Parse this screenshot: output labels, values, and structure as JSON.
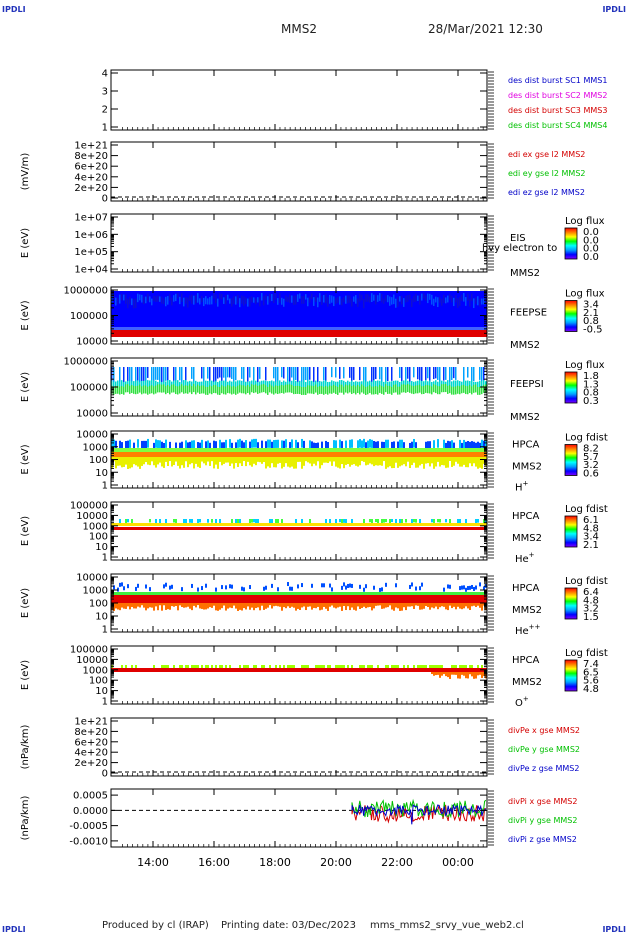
{
  "header": {
    "corner_tl": "IPDLI",
    "corner_tr": "IPDLI",
    "corner_bl": "IPDLI",
    "corner_br": "IPDLI",
    "spacecraft": "MMS2",
    "datetime": "28/Mar/2021 12:30"
  },
  "footer": {
    "produced": "Produced by cl (IRAP)",
    "printing": "Printing date: 03/Dec/2023",
    "filename": "mms_mms2_srvy_vue_web2.cl"
  },
  "colors": {
    "red": "#d40000",
    "green": "#00c000",
    "blue": "#0000c8",
    "magenta": "#e000e0",
    "colorbar": [
      "#7f00ff",
      "#0000ff",
      "#00a0ff",
      "#00ffff",
      "#00ff00",
      "#ffff00",
      "#ff8000",
      "#ff0000"
    ]
  },
  "chart_data": [
    {
      "type": "line",
      "panel": "burst",
      "y_ticks": [
        "1",
        "2",
        "3",
        "4"
      ],
      "legend": [
        {
          "text": "des dist burst SC1 MMS1",
          "color": "#0000c8"
        },
        {
          "text": "des dist burst SC2 MMS2",
          "color": "#e000e0"
        },
        {
          "text": "des dist burst SC3 MMS3",
          "color": "#d40000"
        },
        {
          "text": "des dist burst SC4 MMS4",
          "color": "#00c000"
        }
      ]
    },
    {
      "type": "line",
      "panel": "edi",
      "ylabel": "(mV/m)",
      "y_ticks": [
        "0",
        "2e+20",
        "4e+20",
        "6e+20",
        "8e+20",
        "1e+21"
      ],
      "legend": [
        {
          "text": "edi ex gse l2 MMS2",
          "color": "#d40000"
        },
        {
          "text": "edi ey gse l2 MMS2",
          "color": "#00c000"
        },
        {
          "text": "edi ez gse l2 MMS2",
          "color": "#0000c8"
        }
      ]
    },
    {
      "type": "heatmap",
      "panel": "eis",
      "ylabel": "E (eV)",
      "yscale": "log",
      "y_ticks": [
        "1e+04",
        "1e+05",
        "1e+06",
        "1e+07"
      ],
      "labels": [
        "EIS",
        "MMS2"
      ],
      "overlay_text": "l:vy electron to",
      "colorbar": {
        "title": "Log flux",
        "ticks": [
          "0.0",
          "0.0",
          "0.0",
          "0.0"
        ]
      }
    },
    {
      "type": "heatmap",
      "panel": "feepse",
      "ylabel": "E (eV)",
      "yscale": "log",
      "y_ticks": [
        "10000",
        "100000",
        "1000000"
      ],
      "labels": [
        "FEEPSE",
        "MMS2"
      ],
      "colorbar": {
        "title": "Log flux",
        "ticks": [
          "3.4",
          "2.1",
          "0.8",
          "-0.5"
        ]
      }
    },
    {
      "type": "heatmap",
      "panel": "feepsi",
      "ylabel": "E (eV)",
      "yscale": "log",
      "y_ticks": [
        "10000",
        "100000",
        "1000000"
      ],
      "labels": [
        "FEEPSI",
        "MMS2"
      ],
      "colorbar": {
        "title": "Log flux",
        "ticks": [
          "1.8",
          "1.3",
          "0.8",
          "0.3"
        ]
      }
    },
    {
      "type": "heatmap",
      "panel": "hpca_h",
      "ylabel": "E (eV)",
      "yscale": "log",
      "y_ticks": [
        "1",
        "10",
        "100",
        "1000",
        "10000"
      ],
      "labels": [
        "HPCA",
        "MMS2"
      ],
      "species": "H",
      "species_sup": "+",
      "colorbar": {
        "title": "Log fdist",
        "ticks": [
          "8.2",
          "5.7",
          "3.2",
          "0.6"
        ]
      }
    },
    {
      "type": "heatmap",
      "panel": "hpca_he",
      "ylabel": "E (eV)",
      "yscale": "log",
      "y_ticks": [
        "1",
        "10",
        "100",
        "1000",
        "10000",
        "100000"
      ],
      "labels": [
        "HPCA",
        "MMS2"
      ],
      "species": "He",
      "species_sup": "+",
      "colorbar": {
        "title": "Log fdist",
        "ticks": [
          "6.1",
          "4.8",
          "3.4",
          "2.1"
        ]
      }
    },
    {
      "type": "heatmap",
      "panel": "hpca_hepp",
      "ylabel": "E (eV)",
      "yscale": "log",
      "y_ticks": [
        "1",
        "10",
        "100",
        "1000",
        "10000"
      ],
      "labels": [
        "HPCA",
        "MMS2"
      ],
      "species": "He",
      "species_sup": "++",
      "colorbar": {
        "title": "Log fdist",
        "ticks": [
          "6.4",
          "4.8",
          "3.2",
          "1.5"
        ]
      }
    },
    {
      "type": "heatmap",
      "panel": "hpca_o",
      "ylabel": "E (eV)",
      "yscale": "log",
      "y_ticks": [
        "1",
        "10",
        "100",
        "1000",
        "10000",
        "100000"
      ],
      "labels": [
        "HPCA",
        "MMS2"
      ],
      "species": "O",
      "species_sup": "+",
      "colorbar": {
        "title": "Log fdist",
        "ticks": [
          "7.4",
          "6.5",
          "5.6",
          "4.8"
        ]
      }
    },
    {
      "type": "line",
      "panel": "divpe",
      "ylabel": "(nPa/km)",
      "y_ticks": [
        "0",
        "2e+20",
        "4e+20",
        "6e+20",
        "8e+20",
        "1e+21"
      ],
      "legend": [
        {
          "text": "divPe x gse MMS2",
          "color": "#d40000"
        },
        {
          "text": "divPe y gse MMS2",
          "color": "#00c000"
        },
        {
          "text": "divPe z gse MMS2",
          "color": "#0000c8"
        }
      ]
    },
    {
      "type": "line",
      "panel": "divpi",
      "ylabel": "(nPa/km)",
      "y_ticks": [
        "-0.0010",
        "-0.0005",
        "0.0000",
        "0.0005"
      ],
      "ylim": [
        -0.0012,
        0.0007
      ],
      "legend": [
        {
          "text": "divPi x gse MMS2",
          "color": "#d40000"
        },
        {
          "text": "divPi y gse MMS2",
          "color": "#00c000"
        },
        {
          "text": "divPi z gse MMS2",
          "color": "#0000c8"
        }
      ]
    }
  ],
  "x_axis": {
    "ticks": [
      "14:00",
      "16:00",
      "18:00",
      "20:00",
      "22:00",
      "00:00"
    ]
  }
}
